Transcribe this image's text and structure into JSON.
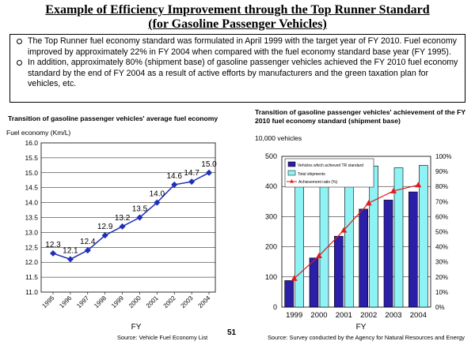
{
  "title": {
    "line1": "Example of Efficiency Improvement through the Top Runner Standard",
    "line2": "(for Gasoline Passenger Vehicles)"
  },
  "bullets": [
    "The Top Runner fuel economy standard was formulated in April 1999 with the target year of  FY 2010. Fuel economy improved by approximately 22% in FY 2004 when compared with the fuel economy standard base year (FY 1995).",
    "In addition, approximately 80% (shipment base) of gasoline passenger vehicles achieved the FY 2010 fuel economy standard by the end of FY 2004 as a result of active efforts by manufacturers and the green taxation plan for vehicles, etc."
  ],
  "page_number": "51",
  "chart_data": [
    {
      "type": "line",
      "title": "Transition of gasoline passenger vehicles' average fuel economy",
      "ylabel": "Fuel economy (Km/L)",
      "xlabel": "FY",
      "x": [
        "1995",
        "1996",
        "1997",
        "1998",
        "1999",
        "2000",
        "2001",
        "2002",
        "2003",
        "2004"
      ],
      "y": [
        12.3,
        12.1,
        12.4,
        12.9,
        13.2,
        13.5,
        14.0,
        14.6,
        14.7,
        15.0
      ],
      "data_labels": [
        "12.3",
        "12.1",
        "12.4",
        "12.9",
        "13.2",
        "13.5",
        "14.0",
        "14.6",
        "14.7",
        "15.0"
      ],
      "ylim": [
        11.0,
        16.0
      ],
      "yticks": [
        "11.0",
        "11.5",
        "12.0",
        "12.5",
        "13.0",
        "13.5",
        "14.0",
        "14.5",
        "15.0",
        "15.5",
        "16.0"
      ],
      "color": "#1f2fb8",
      "grid": true,
      "source": "Source: Vehicle Fuel Economy List"
    },
    {
      "type": "bar",
      "title": "Transition of gasoline passenger vehicles' achievement of the FY 2010 fuel economy standard (shipment base)",
      "ylabel": "10,000 vehicles",
      "xlabel": "FY",
      "categories": [
        "1999",
        "2000",
        "2001",
        "2002",
        "2003",
        "2004"
      ],
      "series": [
        {
          "name": "Vehicles which achieved TR standard",
          "values": [
            88,
            163,
            235,
            325,
            355,
            382
          ],
          "color": "#2a1fa6"
        },
        {
          "name": "Total shipments",
          "values": [
            447,
            478,
            462,
            468,
            462,
            470
          ],
          "color": "#8ff2f5"
        },
        {
          "name": "Achievement ratio (%)",
          "values": [
            19,
            34,
            51,
            69,
            77,
            81
          ],
          "color": "#e01b1b",
          "axis": "right"
        }
      ],
      "ylim": [
        0,
        500
      ],
      "yticks": [
        "0",
        "100",
        "200",
        "300",
        "400",
        "500"
      ],
      "y2lim": [
        0,
        100
      ],
      "y2ticks": [
        "0%",
        "10%",
        "20%",
        "30%",
        "40%",
        "50%",
        "60%",
        "70%",
        "80%",
        "90%",
        "100%"
      ],
      "grid": true,
      "legend": "top-left",
      "source": "Source: Survey conducted by the Agency for Natural Resources and Energy"
    }
  ]
}
